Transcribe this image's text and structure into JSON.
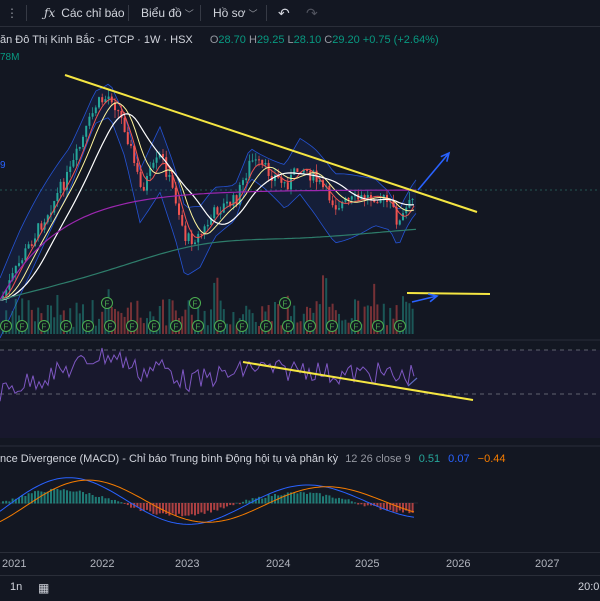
{
  "toolbar": {
    "indicators_label": "Các chỉ báo",
    "chart_label": "Biểu đồ",
    "profile_label": "Hồ sơ",
    "indicators_icon": "fx-icon",
    "undo_icon": "undo-icon",
    "redo_icon": "redo-icon"
  },
  "legend": {
    "symbol": "ăn Đô Thị Kinh Bắc - CTCP · 1W · HSX",
    "o_label": "O",
    "o": "28.70",
    "h_label": "H",
    "h": "29.25",
    "l_label": "L",
    "l": "28.10",
    "c_label": "C",
    "c": "29.20",
    "change": "+0.75 (+2.64%)"
  },
  "volume_label": "78M",
  "side_label": "9",
  "macd": {
    "title": "nce Divergence (MACD) - Chỉ báo Trung bình Động hội tụ và phân kỳ",
    "params": "12 26 close 9",
    "v1": "0.51",
    "v2": "0.07",
    "v3": "−0.44"
  },
  "xaxis": {
    "labels": [
      "2021",
      "2022",
      "2023",
      "2024",
      "2025",
      "2026",
      "2027"
    ]
  },
  "bottombar": {
    "interval": "1n",
    "time": "20:0",
    "calendar_icon": "calendar-icon"
  },
  "financial_marker_letter": "F",
  "colors": {
    "background": "#131722",
    "trendline": "#f5e642",
    "arrow": "#2962ff",
    "up": "#26a69a",
    "down": "#ef5350",
    "rsi": "#7e57c2",
    "bollinger": "#2962ff",
    "ma_white": "#ffffff",
    "ma_purple": "#9c27b0",
    "ma_teal": "#26a69a"
  }
}
